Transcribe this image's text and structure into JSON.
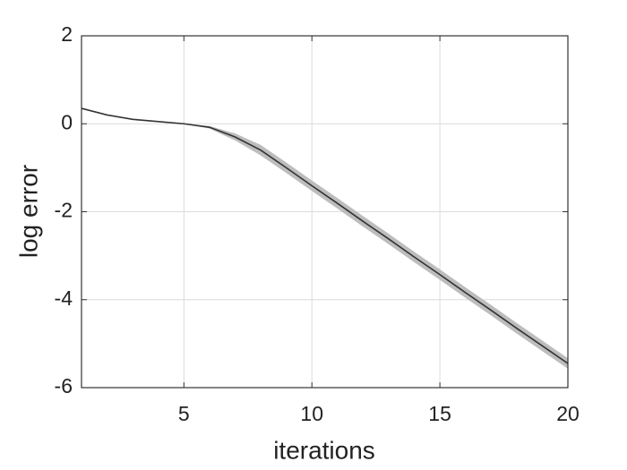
{
  "chart_data": {
    "type": "line",
    "xlabel": "iterations",
    "ylabel": "log error",
    "x": [
      1,
      2,
      3,
      4,
      5,
      6,
      7,
      8,
      9,
      10,
      11,
      12,
      13,
      14,
      15,
      16,
      17,
      18,
      19,
      20
    ],
    "series": [
      {
        "color": "#333333",
        "band_color": "#bdbdbd",
        "values": [
          0.35,
          0.2,
          0.1,
          0.05,
          0.0,
          -0.08,
          -0.3,
          -0.6,
          -1.0,
          -1.41,
          -1.81,
          -2.22,
          -2.62,
          -3.03,
          -3.43,
          -3.84,
          -4.24,
          -4.65,
          -5.05,
          -5.45
        ],
        "lower": [
          0.35,
          0.2,
          0.1,
          0.05,
          0.0,
          -0.11,
          -0.38,
          -0.72,
          -1.12,
          -1.53,
          -1.93,
          -2.34,
          -2.74,
          -3.15,
          -3.55,
          -3.96,
          -4.36,
          -4.77,
          -5.17,
          -5.57
        ],
        "upper": [
          0.35,
          0.2,
          0.1,
          0.05,
          0.0,
          -0.05,
          -0.22,
          -0.48,
          -0.88,
          -1.29,
          -1.69,
          -2.1,
          -2.5,
          -2.91,
          -3.31,
          -3.72,
          -4.12,
          -4.53,
          -4.93,
          -5.33
        ]
      }
    ],
    "xlim": [
      1,
      20
    ],
    "ylim": [
      -6,
      2
    ],
    "xticks": [
      5,
      10,
      15,
      20
    ],
    "yticks": [
      -6,
      -4,
      -2,
      0,
      2
    ],
    "grid": true
  }
}
